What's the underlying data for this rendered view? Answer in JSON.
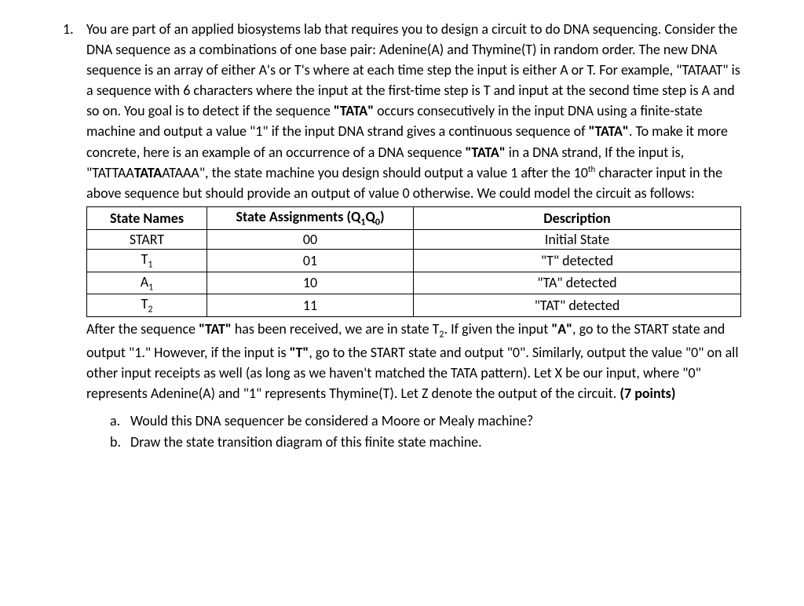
{
  "question": {
    "number": "1.",
    "para_html": "You are part of an applied biosystems lab that requires you to design a circuit to do DNA sequencing. Consider the DNA sequence as a combinations of one base pair: Adenine(A) and Thymine(T) in random order. The new DNA sequence is an array of either A's or T's where at each time step the input is either A or T. For example, \"TATAAT\" is a sequence with 6 characters where the input at the first-time step is T and input at the second time step is A and so on. You goal is to detect if the sequence <span class=\"strong\">\"TATA\"</span> occurs consecutively in the input DNA using a finite-state machine and output a value \"1\" if the input DNA strand gives a continuous sequence of <span class=\"strong\">\"TATA\"</span>. To make it more concrete, here is an example of an occurrence of a DNA sequence <span class=\"strong\">\"TATA\"</span> in a DNA strand, If the input is, \"TATTAA<span class=\"strong\">TATA</span>ATAAA\", the state machine you design should output a value 1 after the 10<sup>th</sup> character input in the above sequence but should provide an output of value 0 otherwise. We could model the circuit as follows:"
  },
  "table": {
    "headers": {
      "col1": "State Names",
      "col2_html": "State Assignments (Q<sub>1</sub>Q<sub>0</sub>)",
      "col3": "Description"
    },
    "rows": [
      {
        "name_html": "START",
        "assign": "00",
        "desc": "Initial State"
      },
      {
        "name_html": "T<sub>1</sub>",
        "assign": "01",
        "desc": "\"T\" detected"
      },
      {
        "name_html": "A<sub>1</sub>",
        "assign": "10",
        "desc": "\"TA\" detected"
      },
      {
        "name_html": "T<sub>2</sub>",
        "assign": "11",
        "desc": "\"TAT\" detected"
      }
    ]
  },
  "after_table_html": "After the sequence <span class=\"strong\">\"TAT\"</span> has been received, we are in state T<sub>2</sub>. If given the input <span class=\"strong\">\"A\"</span>, go to the START state and output \"1.\" However, if the input is <span class=\"strong\">\"T\"</span>, go to the START state and output \"0\". Similarly, output the value \"0\" on all other input receipts as well (as long as we haven't matched the TATA pattern). Let X be our input, where \"0\" represents Adenine(A) and \"1\" represents Thymine(T). Let Z denote the output of the circuit. <span class=\"strong\">(7 points)</span>",
  "subparts": [
    {
      "letter": "a.",
      "text": "Would this DNA sequencer be considered a Moore or Mealy machine?"
    },
    {
      "letter": "b.",
      "text": "Draw the state transition diagram of this finite state machine."
    }
  ]
}
